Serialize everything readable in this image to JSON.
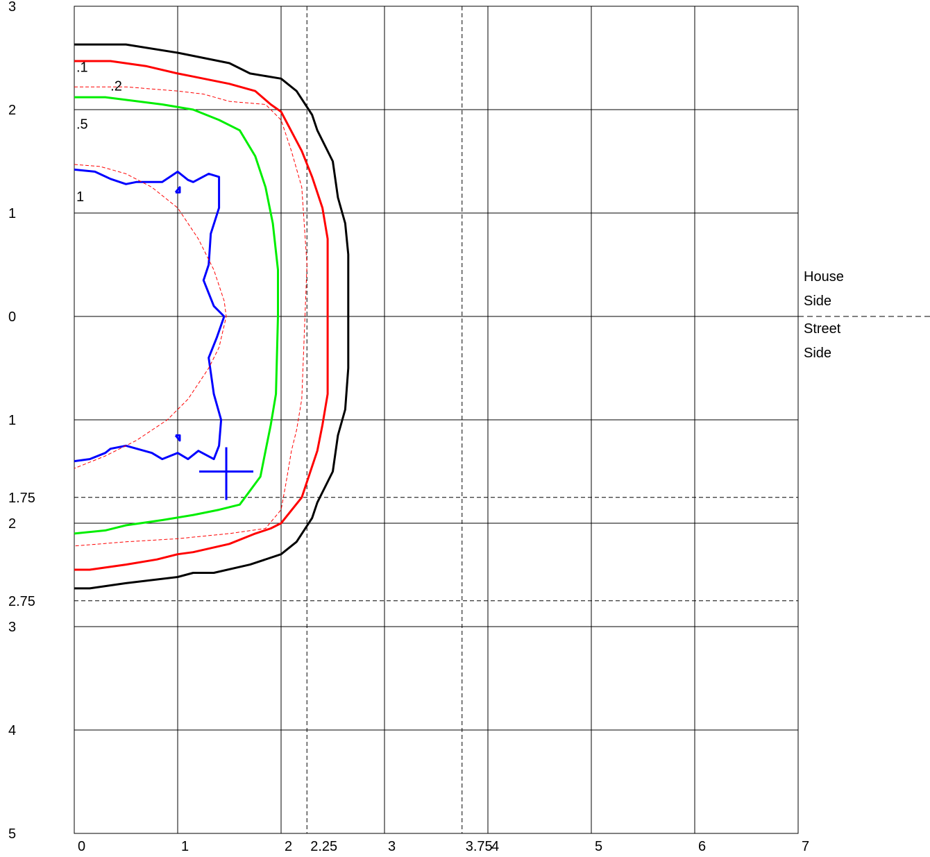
{
  "chart_data": {
    "type": "contour",
    "title": "",
    "xlabel": "",
    "ylabel": "",
    "xlim": [
      0,
      7
    ],
    "ylim": [
      -5,
      3
    ],
    "x_tick_labels": [
      {
        "value": 0,
        "label": "0"
      },
      {
        "value": 1,
        "label": "1"
      },
      {
        "value": 2,
        "label": "2"
      },
      {
        "value": 2.25,
        "label": "2.25"
      },
      {
        "value": 3,
        "label": "3"
      },
      {
        "value": 3.75,
        "label": "3.75"
      },
      {
        "value": 4,
        "label": "4"
      },
      {
        "value": 5,
        "label": "5"
      },
      {
        "value": 6,
        "label": "6"
      },
      {
        "value": 7,
        "label": "7"
      }
    ],
    "y_tick_labels": [
      {
        "value": 3,
        "label": "3"
      },
      {
        "value": 2,
        "label": "2"
      },
      {
        "value": 1,
        "label": "1"
      },
      {
        "value": 0,
        "label": "0"
      },
      {
        "value": -1,
        "label": "1"
      },
      {
        "value": -1.75,
        "label": "1.75"
      },
      {
        "value": -2,
        "label": "2"
      },
      {
        "value": -2.75,
        "label": "2.75"
      },
      {
        "value": -3,
        "label": "3"
      },
      {
        "value": -4,
        "label": "4"
      },
      {
        "value": -5,
        "label": "5"
      }
    ],
    "grid": true,
    "reference_lines": {
      "vertical": [
        2.25,
        3.75
      ],
      "horizontal": [
        -1.75,
        -2.75
      ],
      "divider_y": 0
    },
    "side_labels": {
      "house": [
        "House",
        "Side"
      ],
      "street": [
        "Street",
        "Side"
      ]
    },
    "marker": {
      "x": 1.47,
      "y": -1.5,
      "color": "#0000ff"
    },
    "series": [
      {
        "label": ".1",
        "label_at": [
          0.02,
          2.5
        ],
        "color": "#000000",
        "style": "solid",
        "points": [
          [
            0,
            2.63
          ],
          [
            0.5,
            2.63
          ],
          [
            1,
            2.55
          ],
          [
            1.5,
            2.45
          ],
          [
            1.7,
            2.35
          ],
          [
            2,
            2.3
          ],
          [
            2.15,
            2.18
          ],
          [
            2.3,
            1.95
          ],
          [
            2.35,
            1.8
          ],
          [
            2.5,
            1.5
          ],
          [
            2.55,
            1.15
          ],
          [
            2.62,
            0.9
          ],
          [
            2.65,
            0.6
          ],
          [
            2.65,
            -0.5
          ],
          [
            2.62,
            -0.9
          ],
          [
            2.55,
            -1.15
          ],
          [
            2.5,
            -1.5
          ],
          [
            2.35,
            -1.8
          ],
          [
            2.3,
            -1.95
          ],
          [
            2.15,
            -2.18
          ],
          [
            2,
            -2.3
          ],
          [
            1.7,
            -2.4
          ],
          [
            1.35,
            -2.48
          ],
          [
            1.15,
            -2.48
          ],
          [
            1,
            -2.52
          ],
          [
            0.5,
            -2.58
          ],
          [
            0.15,
            -2.63
          ],
          [
            0,
            -2.63
          ]
        ]
      },
      {
        "label": ".2",
        "label_at": [
          0.35,
          2.32
        ],
        "color": "#ff0000",
        "style": "solid",
        "points": [
          [
            0,
            2.47
          ],
          [
            0.35,
            2.47
          ],
          [
            0.7,
            2.42
          ],
          [
            1,
            2.35
          ],
          [
            1.15,
            2.32
          ],
          [
            1.5,
            2.25
          ],
          [
            1.75,
            2.18
          ],
          [
            1.9,
            2.05
          ],
          [
            2,
            1.98
          ],
          [
            2.2,
            1.6
          ],
          [
            2.3,
            1.35
          ],
          [
            2.4,
            1.05
          ],
          [
            2.45,
            0.75
          ],
          [
            2.45,
            -0.75
          ],
          [
            2.4,
            -1.05
          ],
          [
            2.35,
            -1.3
          ],
          [
            2.3,
            -1.45
          ],
          [
            2.2,
            -1.75
          ],
          [
            2,
            -2
          ],
          [
            1.9,
            -2.05
          ],
          [
            1.75,
            -2.1
          ],
          [
            1.5,
            -2.2
          ],
          [
            1.15,
            -2.28
          ],
          [
            1,
            -2.3
          ],
          [
            0.8,
            -2.35
          ],
          [
            0.5,
            -2.4
          ],
          [
            0.15,
            -2.45
          ],
          [
            0,
            -2.45
          ]
        ]
      },
      {
        "label": ".5",
        "label_at": [
          0.02,
          1.95
        ],
        "color": "#00ee00",
        "style": "solid",
        "points": [
          [
            0,
            2.12
          ],
          [
            0.3,
            2.12
          ],
          [
            0.85,
            2.05
          ],
          [
            1.15,
            2
          ],
          [
            1.4,
            1.9
          ],
          [
            1.6,
            1.8
          ],
          [
            1.75,
            1.55
          ],
          [
            1.85,
            1.25
          ],
          [
            1.92,
            0.9
          ],
          [
            1.97,
            0.45
          ],
          [
            1.97,
            0
          ],
          [
            1.95,
            -0.75
          ],
          [
            1.9,
            -1.05
          ],
          [
            1.85,
            -1.3
          ],
          [
            1.8,
            -1.55
          ],
          [
            1.6,
            -1.82
          ],
          [
            1.4,
            -1.87
          ],
          [
            1.15,
            -1.92
          ],
          [
            0.85,
            -1.97
          ],
          [
            0.5,
            -2.02
          ],
          [
            0.3,
            -2.07
          ],
          [
            0,
            -2.1
          ]
        ]
      },
      {
        "label": "1",
        "label_at": [
          0.02,
          1.25
        ],
        "color": "#0000ff",
        "style": "solid",
        "points": [
          [
            0,
            1.42
          ],
          [
            0.2,
            1.4
          ],
          [
            0.35,
            1.33
          ],
          [
            0.5,
            1.28
          ],
          [
            0.6,
            1.3
          ],
          [
            0.85,
            1.3
          ],
          [
            1,
            1.4
          ],
          [
            1.1,
            1.32
          ],
          [
            1.15,
            1.3
          ],
          [
            1.3,
            1.38
          ],
          [
            1.4,
            1.35
          ],
          [
            1.4,
            1.05
          ],
          [
            1.32,
            0.8
          ],
          [
            1.3,
            0.5
          ],
          [
            1.25,
            0.35
          ],
          [
            1.35,
            0.1
          ],
          [
            1.45,
            0
          ],
          [
            1.38,
            -0.2
          ],
          [
            1.3,
            -0.4
          ],
          [
            1.35,
            -0.75
          ],
          [
            1.42,
            -1
          ],
          [
            1.4,
            -1.25
          ],
          [
            1.35,
            -1.38
          ],
          [
            1.2,
            -1.3
          ],
          [
            1.1,
            -1.38
          ],
          [
            1,
            -1.32
          ],
          [
            0.85,
            -1.38
          ],
          [
            0.75,
            -1.32
          ],
          [
            0.5,
            -1.25
          ],
          [
            0.35,
            -1.28
          ],
          [
            0.3,
            -1.32
          ],
          [
            0.15,
            -1.38
          ],
          [
            0,
            -1.4
          ]
        ]
      },
      {
        "label": "",
        "color": "#0000ff",
        "style": "solid",
        "points": [
          [
            0.98,
            1.2
          ],
          [
            1.02,
            1.25
          ],
          [
            1.02,
            1.2
          ],
          [
            0.98,
            1.2
          ]
        ]
      },
      {
        "label": "",
        "color": "#0000ff",
        "style": "solid",
        "points": [
          [
            0.98,
            -1.15
          ],
          [
            1.02,
            -1.2
          ],
          [
            1.02,
            -1.15
          ],
          [
            0.98,
            -1.15
          ]
        ]
      },
      {
        "label": "",
        "color": "#ff0000",
        "style": "dashed",
        "points": [
          [
            0,
            2.22
          ],
          [
            0.5,
            2.22
          ],
          [
            1,
            2.18
          ],
          [
            1.25,
            2.15
          ],
          [
            1.5,
            2.08
          ],
          [
            1.85,
            2.05
          ],
          [
            2,
            1.9
          ],
          [
            2.1,
            1.6
          ],
          [
            2.2,
            1.25
          ],
          [
            2.25,
            0.5
          ],
          [
            2.2,
            -0.8
          ],
          [
            2.15,
            -1.1
          ],
          [
            2.1,
            -1.3
          ],
          [
            2.05,
            -1.6
          ],
          [
            2.0,
            -1.87
          ],
          [
            1.85,
            -2.05
          ],
          [
            1.5,
            -2.1
          ],
          [
            1,
            -2.15
          ],
          [
            0.5,
            -2.18
          ],
          [
            0,
            -2.22
          ]
        ]
      },
      {
        "label": "",
        "color": "#ff0000",
        "style": "dashed",
        "points": [
          [
            0,
            1.47
          ],
          [
            0.25,
            1.45
          ],
          [
            0.5,
            1.38
          ],
          [
            0.75,
            1.25
          ],
          [
            1,
            1.05
          ],
          [
            1.2,
            0.75
          ],
          [
            1.35,
            0.45
          ],
          [
            1.45,
            0.15
          ],
          [
            1.47,
            0
          ],
          [
            1.4,
            -0.3
          ],
          [
            1.3,
            -0.5
          ],
          [
            1.1,
            -0.8
          ],
          [
            0.9,
            -1
          ],
          [
            0.6,
            -1.2
          ],
          [
            0.3,
            -1.35
          ],
          [
            0,
            -1.47
          ]
        ]
      }
    ]
  }
}
